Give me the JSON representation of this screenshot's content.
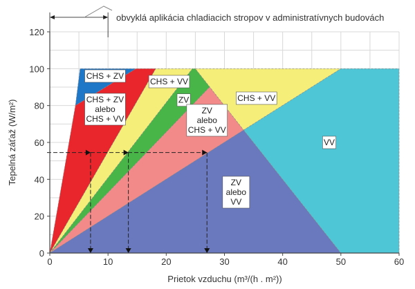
{
  "chart_data": {
    "type": "area",
    "title": "",
    "xlabel": "Prietok vzduchu (m³/(h . m²))",
    "ylabel": "Tepelná záťaž (W/m²)",
    "xlim": [
      0,
      60
    ],
    "ylim": [
      0,
      120
    ],
    "xticks": [
      0,
      10,
      20,
      30,
      40,
      50,
      60
    ],
    "yticks": [
      0,
      20,
      40,
      60,
      80,
      100,
      120
    ],
    "grid": true,
    "annotation": {
      "text": "obvyklá aplikácia chladiacich stropov v administratívnych budovách",
      "range": [
        0,
        10
      ]
    },
    "regions": [
      {
        "name": "CHS + ZV",
        "color": "#1f77c8",
        "points": [
          [
            4.4,
            80
          ],
          [
            5.2,
            100
          ],
          [
            14.8,
            100
          ]
        ],
        "label": [
          "CHS + ZV"
        ],
        "label_at": [
          9.5,
          96
        ]
      },
      {
        "name": "CHS + ZV alebo CHS + VV",
        "color": "#e8262b",
        "points": [
          [
            0,
            0
          ],
          [
            4.4,
            80
          ],
          [
            14.8,
            100
          ],
          [
            18.2,
            100
          ]
        ],
        "label": [
          "CHS + ZV",
          "alebo",
          "CHS + VV"
        ],
        "label_at": [
          9.5,
          78
        ]
      },
      {
        "name": "CHS + VV (left)",
        "color": "#f5ef7a",
        "points": [
          [
            0,
            0
          ],
          [
            18.2,
            100
          ],
          [
            24.5,
            100
          ]
        ],
        "label": [
          "CHS + VV"
        ],
        "label_at": [
          20.5,
          93
        ]
      },
      {
        "name": "ZV",
        "color": "#47b548",
        "points": [
          [
            0,
            0
          ],
          [
            24.5,
            100
          ],
          [
            25,
            100
          ],
          [
            27.47,
            90.1
          ]
        ],
        "label": [
          "ZV"
        ],
        "label_at": [
          23,
          83
        ]
      },
      {
        "name": "ZV alebo CHS + VV",
        "color": "#f28a8a",
        "points": [
          [
            0,
            0
          ],
          [
            27.47,
            90.1
          ],
          [
            33.3,
            66.7
          ]
        ],
        "label": [
          "ZV",
          "alebo",
          "CHS + VV"
        ],
        "label_at": [
          27,
          72
        ]
      },
      {
        "name": "CHS + VV (right)",
        "color": "#f5ef7a",
        "points": [
          [
            25,
            100
          ],
          [
            50,
            100
          ],
          [
            33.3,
            66.7
          ],
          [
            27.47,
            90.1
          ]
        ],
        "label": [
          "CHS + VV"
        ],
        "label_at": [
          35.5,
          84
        ]
      },
      {
        "name": "ZV alebo VV",
        "color": "#6a78bd",
        "points": [
          [
            0,
            0
          ],
          [
            33.3,
            66.7
          ],
          [
            50,
            0
          ]
        ],
        "label": [
          "ZV",
          "alebo",
          "VV"
        ],
        "label_at": [
          32,
          33
        ]
      },
      {
        "name": "VV",
        "color": "#4fc6d6",
        "points": [
          [
            33.3,
            66.7
          ],
          [
            50,
            100
          ],
          [
            60,
            100
          ],
          [
            60,
            0
          ],
          [
            50,
            0
          ]
        ],
        "label": [
          "VV"
        ],
        "label_at": [
          48,
          60
        ]
      }
    ],
    "guide_lines": {
      "y": 54.5,
      "x_values": [
        7,
        13.5,
        27
      ]
    }
  }
}
